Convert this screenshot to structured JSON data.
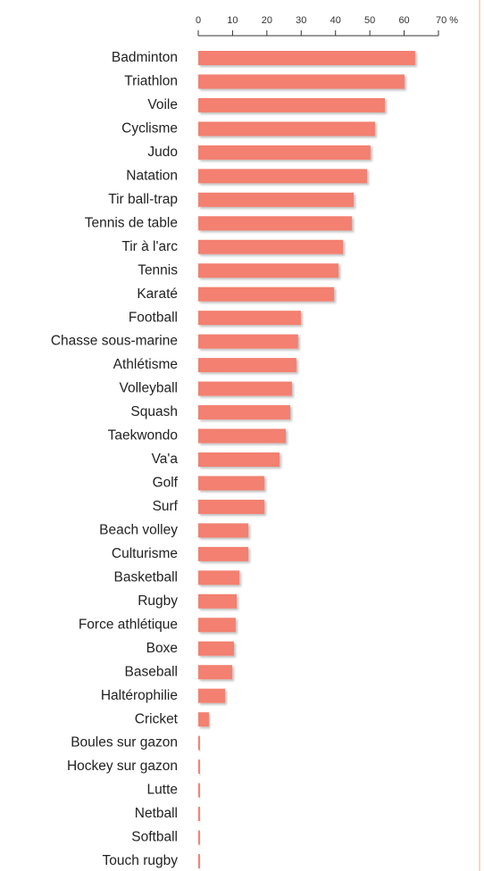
{
  "chart_data": {
    "type": "bar",
    "orientation": "horizontal",
    "categories": [
      "Badminton",
      "Triathlon",
      "Voile",
      "Cyclisme",
      "Judo",
      "Natation",
      "Tir ball-trap",
      "Tennis de table",
      "Tir à l'arc",
      "Tennis",
      "Karaté",
      "Football",
      "Chasse sous-marine",
      "Athlétisme",
      "Volleyball",
      "Squash",
      "Taekwondo",
      "Va'a",
      "Golf",
      "Surf",
      "Beach volley",
      "Culturisme",
      "Basketball",
      "Rugby",
      "Force athlétique",
      "Boxe",
      "Baseball",
      "Haltérophilie",
      "Cricket",
      "Boules sur gazon",
      "Hockey sur gazon",
      "Lutte",
      "Netball",
      "Softball",
      "Touch rugby"
    ],
    "values": [
      63.2,
      60.1,
      54.4,
      51.5,
      50.2,
      49.2,
      45.3,
      44.8,
      42.2,
      40.9,
      39.6,
      29.9,
      29.1,
      28.6,
      27.3,
      26.8,
      25.5,
      23.7,
      19.3,
      19.3,
      14.6,
      14.6,
      12,
      11.2,
      10.9,
      10.4,
      9.9,
      7.8,
      3.1,
      0.5,
      0.5,
      0.5,
      0.5,
      0.5,
      0.5
    ],
    "color": "#f3806f",
    "xlim": [
      0,
      70
    ],
    "xticks": [
      0,
      10,
      20,
      30,
      40,
      50,
      60,
      {
        "value": 70,
        "label": "70 %"
      }
    ]
  }
}
